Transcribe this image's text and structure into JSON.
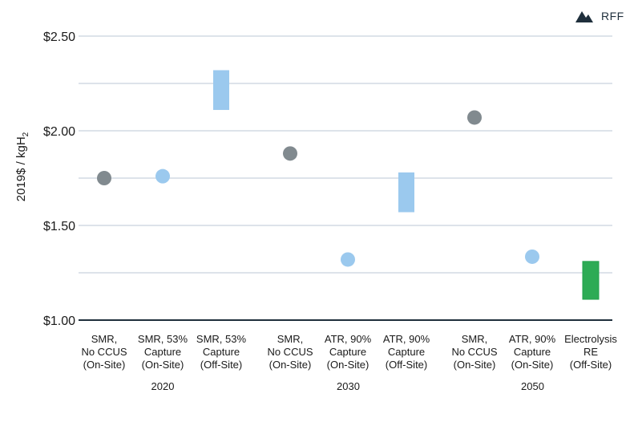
{
  "logo": {
    "text": "RFF",
    "icon": "mountain-icon"
  },
  "chart_data": {
    "type": "scatter",
    "ylabel": "2019$ / kgH",
    "ylabel_subscript": "2",
    "ylim": [
      1.0,
      2.5
    ],
    "yticks": [
      {
        "value": 1.0,
        "label": "$1.00"
      },
      {
        "value": 1.5,
        "label": "$1.50"
      },
      {
        "value": 2.0,
        "label": "$2.00"
      },
      {
        "value": 2.5,
        "label": "$2.50"
      }
    ],
    "gridlines": [
      1.25,
      1.5,
      1.75,
      2.0,
      2.25,
      2.5
    ],
    "colors": {
      "gray": "#818a8f",
      "lightblue": "#9bc9ee",
      "green": "#2dab55"
    },
    "groups": [
      {
        "label": "2020",
        "items": [
          {
            "label": [
              "SMR,",
              "No CCUS",
              "(On-Site)"
            ],
            "kind": "point",
            "value": 1.75,
            "color": "gray"
          },
          {
            "label": [
              "SMR, 53%",
              "Capture",
              "(On-Site)"
            ],
            "kind": "point",
            "value": 1.76,
            "color": "lightblue"
          },
          {
            "label": [
              "SMR, 53%",
              "Capture",
              "(Off-Site)"
            ],
            "kind": "range",
            "low": 2.11,
            "high": 2.32,
            "color": "lightblue"
          }
        ]
      },
      {
        "label": "2030",
        "items": [
          {
            "label": [
              "SMR,",
              "No CCUS",
              "(On-Site)"
            ],
            "kind": "point",
            "value": 1.88,
            "color": "gray"
          },
          {
            "label": [
              "ATR, 90%",
              "Capture",
              "(On-Site)"
            ],
            "kind": "point",
            "value": 1.32,
            "color": "lightblue"
          },
          {
            "label": [
              "ATR, 90%",
              "Capture",
              "(Off-Site)"
            ],
            "kind": "range",
            "low": 1.57,
            "high": 1.78,
            "color": "lightblue"
          }
        ]
      },
      {
        "label": "2050",
        "items": [
          {
            "label": [
              "SMR,",
              "No CCUS",
              "(On-Site)"
            ],
            "kind": "point",
            "value": 2.07,
            "color": "gray"
          },
          {
            "label": [
              "ATR, 90%",
              "Capture",
              "(On-Site)"
            ],
            "kind": "point",
            "value": 1.335,
            "color": "lightblue"
          },
          {
            "label": [
              "Electrolysis",
              "RE",
              "(Off-Site)"
            ],
            "kind": "range",
            "low": 1.11,
            "high": 1.31,
            "color": "green"
          }
        ]
      }
    ]
  }
}
